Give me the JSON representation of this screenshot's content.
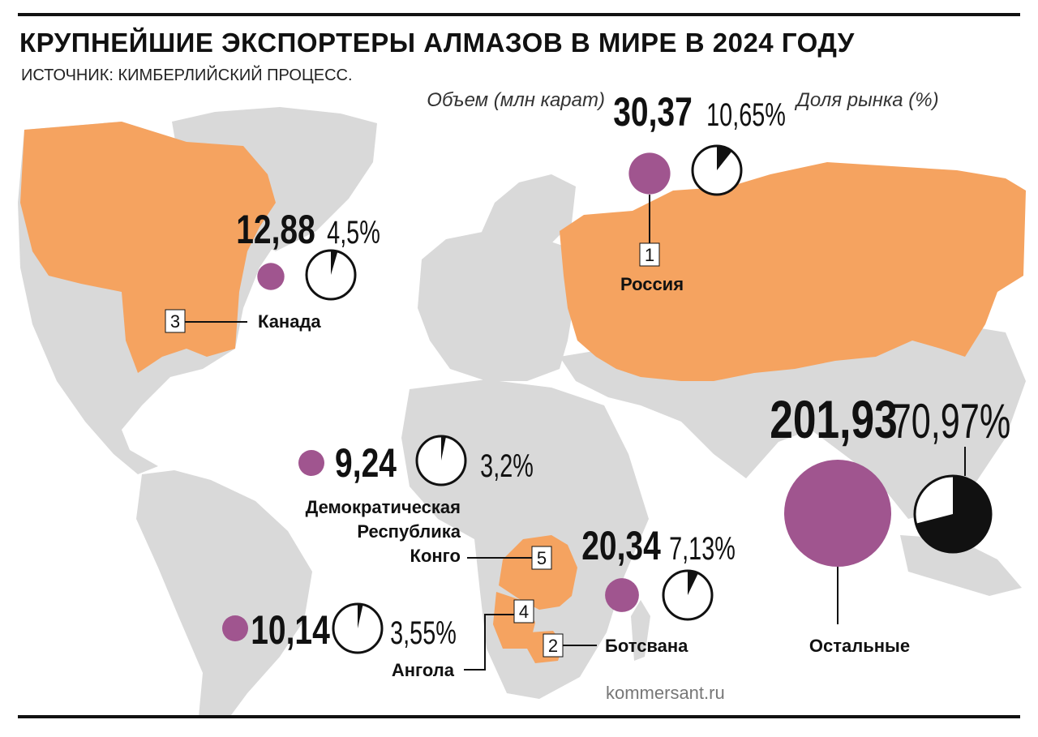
{
  "header": {
    "title": "КРУПНЕЙШИЕ ЭКСПОРТЕРЫ АЛМАЗОВ В МИРЕ В 2024 ГОДУ",
    "source": "ИСТОЧНИК: КИМБЕРЛИЙСКИЙ ПРОЦЕСС."
  },
  "legend": {
    "volume_caption": "Объем (млн карат)",
    "share_caption": "Доля рынка (%)"
  },
  "credit": "kommersant.ru",
  "colors": {
    "land": "#d9d9d9",
    "highlight": "#f5a360",
    "bubble": "#a0558f",
    "pie": "#111111"
  },
  "chart_data": {
    "type": "bubble-map",
    "series": [
      {
        "rank": "1",
        "country": "Россия",
        "volume_label": "30,37",
        "share_label": "10,65%",
        "volume": 30.37,
        "share": 10.65
      },
      {
        "rank": "2",
        "country": "Ботсвана",
        "volume_label": "20,34",
        "share_label": "7,13%",
        "volume": 20.34,
        "share": 7.13
      },
      {
        "rank": "3",
        "country": "Канада",
        "volume_label": "12,88",
        "share_label": "4,5%",
        "volume": 12.88,
        "share": 4.5
      },
      {
        "rank": "4",
        "country": "Ангола",
        "volume_label": "10,14",
        "share_label": "3,55%",
        "volume": 10.14,
        "share": 3.55
      },
      {
        "rank": "5",
        "country": "Демократическая Республика Конго",
        "volume_label": "9,24",
        "share_label": "3,2%",
        "volume": 9.24,
        "share": 3.2
      },
      {
        "rank": "",
        "country": "Остальные",
        "volume_label": "201,93",
        "share_label": "70,97%",
        "volume": 201.93,
        "share": 70.97
      }
    ]
  }
}
